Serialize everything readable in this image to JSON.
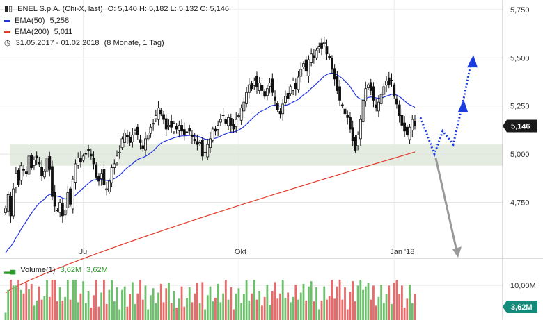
{
  "header": {
    "symbol_icon": "candlestick-icon",
    "title": "ENEL S.p.A. (Chi-X, last)",
    "ohlc": "O: 5,140  H: 5,182  L: 5,132  C: 5,146",
    "ema50_label": "EMA(50)",
    "ema50_value": "5,258",
    "ema200_label": "EMA(200)",
    "ema200_value": "5,011",
    "period_icon": "clock-icon",
    "period": "31.05.2017 - 01.02.2018",
    "period_detail": "(8 Monate, 1 Tag)"
  },
  "volume_header": {
    "label": "Volume(1)",
    "value1": "3,62M",
    "value2": "3,62M"
  },
  "colors": {
    "ema50": "#2233dd",
    "ema200": "#e03a2a",
    "zone": "#dfe8da",
    "forecast_up": "#1a3be0",
    "forecast_down": "#999999",
    "volume_up": "#6cc06c",
    "volume_down": "#e86a6a",
    "badge": "#1a1a1a",
    "vol_badge": "#138a7a"
  },
  "chart_data": {
    "type": "candlestick",
    "y_axis": {
      "ticks": [
        4.75,
        5.0,
        5.25,
        5.5,
        5.75
      ],
      "tick_labels": [
        "4,750",
        "5,000",
        "5,250",
        "5,500",
        "5,750"
      ],
      "range": [
        4.46,
        5.8
      ]
    },
    "x_axis": {
      "tick_labels": [
        "Jul",
        "Okt",
        "Jan '18"
      ],
      "tick_index": [
        30,
        90,
        150
      ]
    },
    "last_price": 5.146,
    "last_price_label": "5,146",
    "support_zone": [
      4.94,
      5.05
    ],
    "closes": [
      4.72,
      4.79,
      4.68,
      4.82,
      4.9,
      4.84,
      4.94,
      4.92,
      4.9,
      4.99,
      4.93,
      4.97,
      4.98,
      4.95,
      4.89,
      4.91,
      4.98,
      4.92,
      4.78,
      4.73,
      4.71,
      4.75,
      4.68,
      4.71,
      4.8,
      4.74,
      4.87,
      4.95,
      4.98,
      4.96,
      4.99,
      5.0,
      5.02,
      4.99,
      4.95,
      4.88,
      4.86,
      4.9,
      4.84,
      4.82,
      4.86,
      4.93,
      4.95,
      4.99,
      5.01,
      5.08,
      5.11,
      5.09,
      5.06,
      5.1,
      5.12,
      5.1,
      5.06,
      5.03,
      5.08,
      5.1,
      5.14,
      5.16,
      5.2,
      5.24,
      5.21,
      5.18,
      5.13,
      5.15,
      5.14,
      5.16,
      5.13,
      5.15,
      5.12,
      5.1,
      5.11,
      5.12,
      5.09,
      5.07,
      5.05,
      5.06,
      4.99,
      5.01,
      5.05,
      5.08,
      5.13,
      5.12,
      5.15,
      5.18,
      5.2,
      5.16,
      5.19,
      5.15,
      5.13,
      5.18,
      5.2,
      5.24,
      5.27,
      5.32,
      5.36,
      5.34,
      5.38,
      5.35,
      5.37,
      5.33,
      5.3,
      5.34,
      5.37,
      5.32,
      5.28,
      5.23,
      5.21,
      5.26,
      5.3,
      5.29,
      5.35,
      5.38,
      5.34,
      5.4,
      5.44,
      5.47,
      5.43,
      5.49,
      5.52,
      5.5,
      5.54,
      5.56,
      5.55,
      5.58,
      5.52,
      5.5,
      5.44,
      5.39,
      5.33,
      5.28,
      5.25,
      5.21,
      5.19,
      5.13,
      5.07,
      5.02,
      5.1,
      5.18,
      5.28,
      5.34,
      5.36,
      5.33,
      5.28,
      5.24,
      5.27,
      5.31,
      5.35,
      5.38,
      5.36,
      5.38,
      5.3,
      5.26,
      5.2,
      5.15,
      5.12,
      5.1,
      5.14,
      5.18,
      5.146
    ],
    "ema50_endpoints": [
      4.48,
      5.258
    ],
    "ema200_endpoints": [
      4.28,
      5.011
    ],
    "volume_axis": {
      "tick_label": "10,00M",
      "tick_value": 10.0,
      "last_label": "3,62M",
      "last_value": 3.62
    },
    "forecast": {
      "up_path": [
        [
          5.19,
          0
        ],
        [
          5.0,
          1
        ],
        [
          5.12,
          2
        ],
        [
          5.05,
          3
        ],
        [
          5.27,
          4
        ],
        [
          5.5,
          5
        ]
      ],
      "down_target": 4.47
    }
  }
}
